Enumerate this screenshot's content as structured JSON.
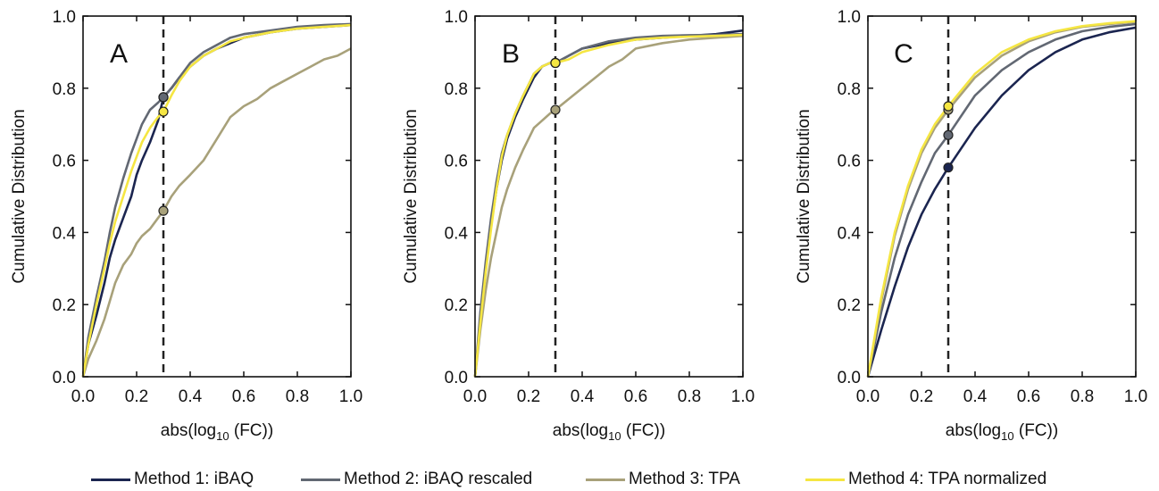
{
  "colors": {
    "method1": "#1b2550",
    "method2": "#626873",
    "method3": "#a8a17a",
    "method4": "#f5e642",
    "axis": "#111111",
    "dashed": "#222222"
  },
  "legend": {
    "placement": "bottom",
    "items": [
      {
        "label": "Method 1: iBAQ",
        "color_key": "method1"
      },
      {
        "label": "Method 2: iBAQ rescaled",
        "color_key": "method2"
      },
      {
        "label": "Method 3: TPA",
        "color_key": "method3"
      },
      {
        "label": "Method 4: TPA normalized",
        "color_key": "method4"
      }
    ]
  },
  "chart_data": [
    {
      "type": "line",
      "panel_label": "A",
      "xlabel": "abs(log10 (FC))",
      "ylabel": "Cumulative Distribution",
      "xlim": [
        0,
        1
      ],
      "ylim": [
        0,
        1
      ],
      "xticks": [
        "0.0",
        "0.2",
        "0.4",
        "0.6",
        "0.8",
        "1.0"
      ],
      "yticks": [
        "0.0",
        "0.2",
        "0.4",
        "0.6",
        "0.8",
        "1.0"
      ],
      "vline_x": 0.3,
      "series": [
        {
          "name": "Method 1: iBAQ",
          "color_key": "method1",
          "x": [
            0,
            0.02,
            0.05,
            0.08,
            0.1,
            0.12,
            0.15,
            0.18,
            0.2,
            0.22,
            0.25,
            0.28,
            0.3,
            0.33,
            0.36,
            0.4,
            0.45,
            0.5,
            0.55,
            0.6,
            0.7,
            0.8,
            0.9,
            1.0
          ],
          "y": [
            0,
            0.09,
            0.17,
            0.26,
            0.33,
            0.38,
            0.44,
            0.5,
            0.56,
            0.6,
            0.65,
            0.71,
            0.775,
            0.8,
            0.83,
            0.86,
            0.89,
            0.91,
            0.925,
            0.94,
            0.955,
            0.965,
            0.97,
            0.975
          ],
          "marker": {
            "x": 0.3,
            "y": 0.775
          }
        },
        {
          "name": "Method 2: iBAQ rescaled",
          "color_key": "method2",
          "x": [
            0,
            0.02,
            0.05,
            0.08,
            0.1,
            0.12,
            0.15,
            0.18,
            0.2,
            0.22,
            0.25,
            0.28,
            0.3,
            0.33,
            0.36,
            0.4,
            0.45,
            0.5,
            0.55,
            0.6,
            0.7,
            0.8,
            0.9,
            1.0
          ],
          "y": [
            0,
            0.11,
            0.22,
            0.32,
            0.4,
            0.47,
            0.55,
            0.62,
            0.66,
            0.7,
            0.74,
            0.76,
            0.775,
            0.8,
            0.83,
            0.87,
            0.9,
            0.92,
            0.94,
            0.95,
            0.96,
            0.97,
            0.975,
            0.978
          ],
          "marker": {
            "x": 0.3,
            "y": 0.775
          }
        },
        {
          "name": "Method 3: TPA",
          "color_key": "method3",
          "x": [
            0,
            0.02,
            0.05,
            0.08,
            0.1,
            0.12,
            0.15,
            0.18,
            0.2,
            0.22,
            0.25,
            0.28,
            0.3,
            0.33,
            0.36,
            0.4,
            0.45,
            0.5,
            0.55,
            0.6,
            0.65,
            0.7,
            0.75,
            0.8,
            0.85,
            0.9,
            0.95,
            1.0
          ],
          "y": [
            0,
            0.05,
            0.1,
            0.16,
            0.21,
            0.26,
            0.31,
            0.34,
            0.37,
            0.39,
            0.41,
            0.44,
            0.46,
            0.5,
            0.53,
            0.56,
            0.6,
            0.66,
            0.72,
            0.75,
            0.77,
            0.8,
            0.82,
            0.84,
            0.86,
            0.88,
            0.89,
            0.91
          ],
          "marker": {
            "x": 0.3,
            "y": 0.46
          }
        },
        {
          "name": "Method 4: TPA normalized",
          "color_key": "method4",
          "x": [
            0,
            0.02,
            0.05,
            0.08,
            0.1,
            0.12,
            0.15,
            0.18,
            0.2,
            0.22,
            0.25,
            0.28,
            0.3,
            0.33,
            0.36,
            0.4,
            0.45,
            0.5,
            0.55,
            0.6,
            0.7,
            0.8,
            0.9,
            1.0
          ],
          "y": [
            0,
            0.09,
            0.2,
            0.3,
            0.37,
            0.43,
            0.5,
            0.57,
            0.61,
            0.65,
            0.69,
            0.72,
            0.735,
            0.78,
            0.82,
            0.86,
            0.89,
            0.91,
            0.93,
            0.94,
            0.955,
            0.965,
            0.97,
            0.975
          ],
          "marker": {
            "x": 0.3,
            "y": 0.735
          }
        }
      ]
    },
    {
      "type": "line",
      "panel_label": "B",
      "xlabel": "abs(log10 (FC))",
      "ylabel": "Cumulative Distribution",
      "xlim": [
        0,
        1
      ],
      "ylim": [
        0,
        1
      ],
      "xticks": [
        "0.0",
        "0.2",
        "0.4",
        "0.6",
        "0.8",
        "1.0"
      ],
      "yticks": [
        "0.0",
        "0.2",
        "0.4",
        "0.6",
        "0.8",
        "1.0"
      ],
      "vline_x": 0.3,
      "series": [
        {
          "name": "Method 1: iBAQ",
          "color_key": "method1",
          "x": [
            0,
            0.02,
            0.04,
            0.06,
            0.08,
            0.1,
            0.12,
            0.15,
            0.18,
            0.2,
            0.22,
            0.25,
            0.28,
            0.3,
            0.35,
            0.4,
            0.5,
            0.6,
            0.7,
            0.8,
            0.9,
            1.0
          ],
          "y": [
            0,
            0.16,
            0.3,
            0.42,
            0.52,
            0.6,
            0.66,
            0.72,
            0.77,
            0.8,
            0.83,
            0.86,
            0.87,
            0.87,
            0.89,
            0.91,
            0.925,
            0.935,
            0.94,
            0.945,
            0.95,
            0.96
          ],
          "marker": {
            "x": 0.3,
            "y": 0.87
          }
        },
        {
          "name": "Method 2: iBAQ rescaled",
          "color_key": "method2",
          "x": [
            0,
            0.02,
            0.04,
            0.06,
            0.08,
            0.1,
            0.12,
            0.15,
            0.18,
            0.2,
            0.22,
            0.25,
            0.28,
            0.3,
            0.35,
            0.4,
            0.5,
            0.6,
            0.7,
            0.8,
            0.9,
            1.0
          ],
          "y": [
            0,
            0.18,
            0.32,
            0.44,
            0.54,
            0.62,
            0.67,
            0.73,
            0.78,
            0.81,
            0.84,
            0.86,
            0.87,
            0.87,
            0.89,
            0.91,
            0.93,
            0.94,
            0.945,
            0.947,
            0.948,
            0.95
          ],
          "marker": {
            "x": 0.3,
            "y": 0.87
          }
        },
        {
          "name": "Method 3: TPA",
          "color_key": "method3",
          "x": [
            0,
            0.02,
            0.04,
            0.06,
            0.08,
            0.1,
            0.12,
            0.15,
            0.18,
            0.2,
            0.22,
            0.25,
            0.28,
            0.3,
            0.35,
            0.4,
            0.45,
            0.5,
            0.55,
            0.6,
            0.7,
            0.8,
            0.9,
            1.0
          ],
          "y": [
            0,
            0.13,
            0.24,
            0.33,
            0.4,
            0.47,
            0.52,
            0.58,
            0.63,
            0.66,
            0.69,
            0.71,
            0.73,
            0.74,
            0.77,
            0.8,
            0.83,
            0.86,
            0.88,
            0.91,
            0.925,
            0.935,
            0.94,
            0.945
          ],
          "marker": {
            "x": 0.3,
            "y": 0.74
          }
        },
        {
          "name": "Method 4: TPA normalized",
          "color_key": "method4",
          "x": [
            0,
            0.02,
            0.04,
            0.06,
            0.08,
            0.1,
            0.12,
            0.15,
            0.18,
            0.2,
            0.22,
            0.25,
            0.28,
            0.3,
            0.35,
            0.4,
            0.5,
            0.6,
            0.7,
            0.8,
            0.9,
            1.0
          ],
          "y": [
            0,
            0.15,
            0.29,
            0.41,
            0.52,
            0.61,
            0.67,
            0.73,
            0.78,
            0.81,
            0.84,
            0.86,
            0.87,
            0.87,
            0.88,
            0.9,
            0.92,
            0.935,
            0.94,
            0.943,
            0.945,
            0.948
          ],
          "marker": {
            "x": 0.3,
            "y": 0.87
          }
        }
      ]
    },
    {
      "type": "line",
      "panel_label": "C",
      "xlabel": "abs(log10 (FC))",
      "ylabel": "Cumulative Distribution",
      "xlim": [
        0,
        1
      ],
      "ylim": [
        0,
        1
      ],
      "xticks": [
        "0.0",
        "0.2",
        "0.4",
        "0.6",
        "0.8",
        "1.0"
      ],
      "yticks": [
        "0.0",
        "0.2",
        "0.4",
        "0.6",
        "0.8",
        "1.0"
      ],
      "vline_x": 0.3,
      "series": [
        {
          "name": "Method 1: iBAQ",
          "color_key": "method1",
          "x": [
            0,
            0.05,
            0.1,
            0.15,
            0.2,
            0.25,
            0.3,
            0.4,
            0.5,
            0.6,
            0.7,
            0.8,
            0.9,
            1.0
          ],
          "y": [
            0,
            0.13,
            0.25,
            0.36,
            0.45,
            0.52,
            0.58,
            0.69,
            0.78,
            0.85,
            0.9,
            0.935,
            0.955,
            0.968
          ],
          "marker": {
            "x": 0.3,
            "y": 0.58
          }
        },
        {
          "name": "Method 2: iBAQ rescaled",
          "color_key": "method2",
          "x": [
            0,
            0.05,
            0.1,
            0.15,
            0.2,
            0.25,
            0.3,
            0.4,
            0.5,
            0.6,
            0.7,
            0.8,
            0.9,
            1.0
          ],
          "y": [
            0,
            0.18,
            0.33,
            0.45,
            0.54,
            0.62,
            0.67,
            0.78,
            0.85,
            0.9,
            0.935,
            0.958,
            0.97,
            0.978
          ],
          "marker": {
            "x": 0.3,
            "y": 0.67
          }
        },
        {
          "name": "Method 3: TPA",
          "color_key": "method3",
          "x": [
            0,
            0.05,
            0.1,
            0.15,
            0.2,
            0.25,
            0.3,
            0.4,
            0.5,
            0.6,
            0.7,
            0.8,
            0.9,
            1.0
          ],
          "y": [
            0,
            0.21,
            0.39,
            0.52,
            0.62,
            0.69,
            0.74,
            0.83,
            0.89,
            0.93,
            0.955,
            0.97,
            0.978,
            0.984
          ],
          "marker": {
            "x": 0.3,
            "y": 0.74
          }
        },
        {
          "name": "Method 4: TPA normalized",
          "color_key": "method4",
          "x": [
            0,
            0.05,
            0.1,
            0.15,
            0.2,
            0.25,
            0.3,
            0.4,
            0.5,
            0.6,
            0.7,
            0.8,
            0.9,
            1.0
          ],
          "y": [
            0,
            0.22,
            0.4,
            0.53,
            0.63,
            0.7,
            0.75,
            0.84,
            0.9,
            0.935,
            0.958,
            0.972,
            0.98,
            0.986
          ],
          "marker": {
            "x": 0.3,
            "y": 0.75
          }
        }
      ]
    }
  ]
}
